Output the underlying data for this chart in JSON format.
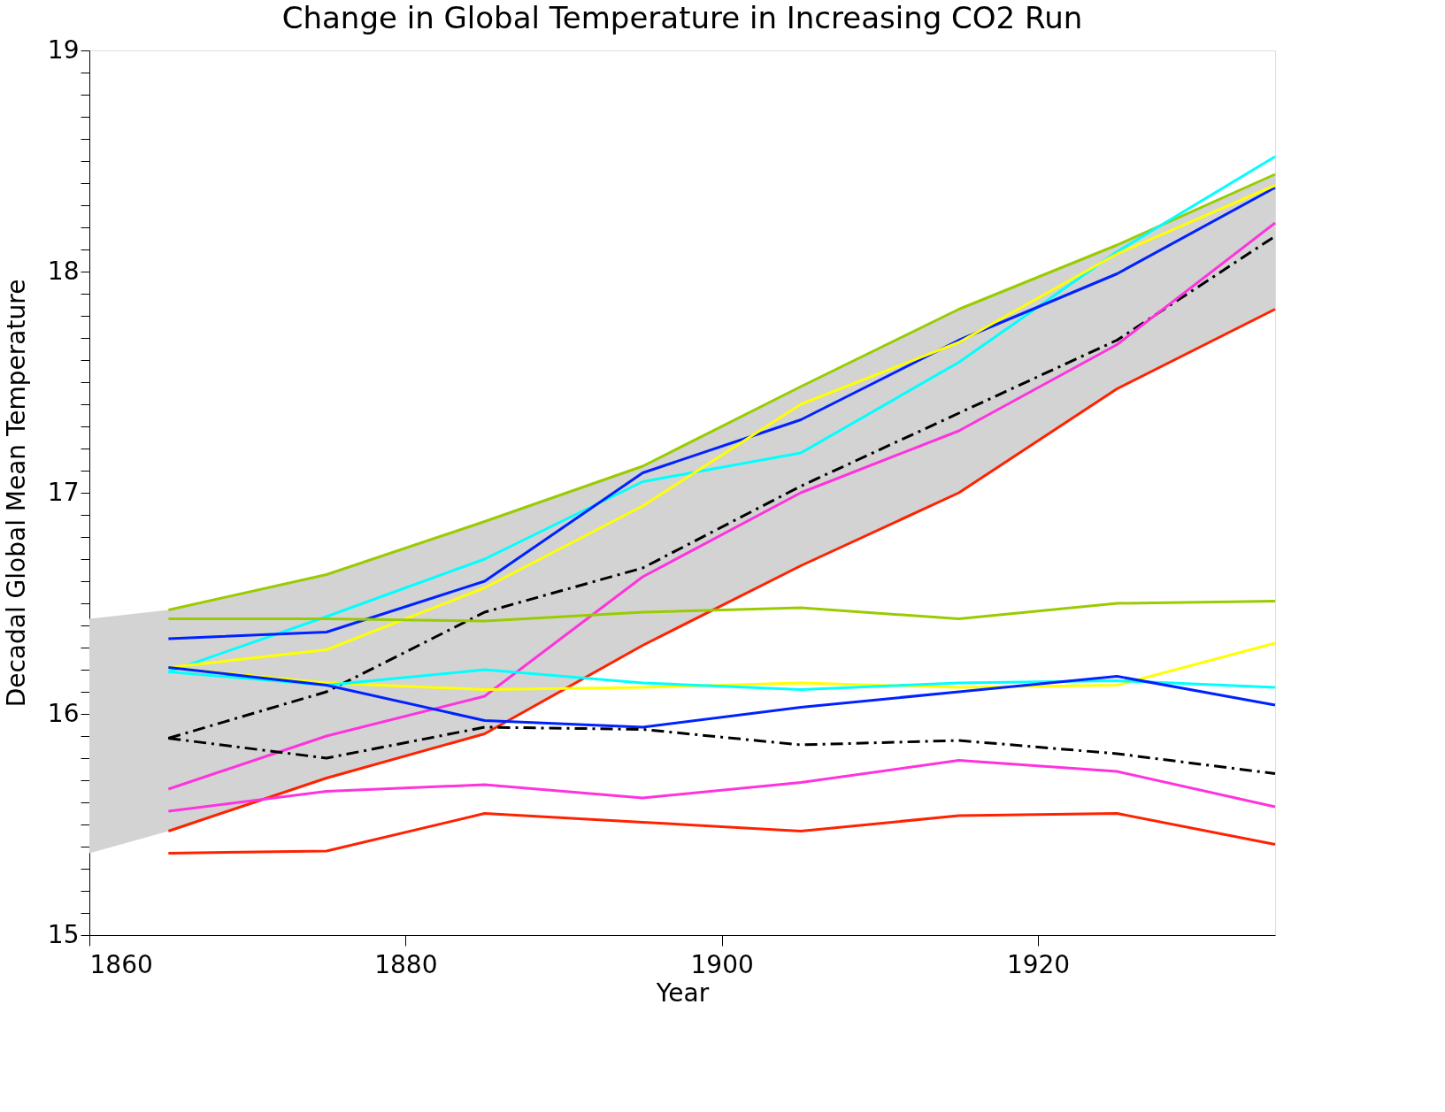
{
  "chart_data": {
    "type": "line",
    "title": "Change in Global Temperature in Increasing CO2 Run",
    "xlabel": "Year",
    "ylabel": "Decadal Global Mean Temperature",
    "x": [
      1865,
      1875,
      1885,
      1895,
      1905,
      1915,
      1925,
      1935
    ],
    "xlim": [
      1860,
      1935
    ],
    "xticks": [
      1860,
      1880,
      1900,
      1920
    ],
    "ylim": [
      15,
      19
    ],
    "yticks": [
      15,
      {
        "value": 15.1,
        "label": null
      },
      {
        "value": 15.2,
        "label": null
      },
      {
        "value": 15.3,
        "label": null
      },
      {
        "value": 15.4,
        "label": null
      },
      {
        "value": 15.5,
        "label": null
      },
      {
        "value": 15.6,
        "label": null
      },
      {
        "value": 15.7,
        "label": null
      },
      {
        "value": 15.8,
        "label": null
      },
      {
        "value": 15.9,
        "label": null
      },
      16,
      {
        "value": 16.1,
        "label": null
      },
      {
        "value": 16.2,
        "label": null
      },
      {
        "value": 16.3,
        "label": null
      },
      {
        "value": 16.4,
        "label": null
      },
      {
        "value": 16.5,
        "label": null
      },
      {
        "value": 16.6,
        "label": null
      },
      {
        "value": 16.7,
        "label": null
      },
      {
        "value": 16.8,
        "label": null
      },
      {
        "value": 16.9,
        "label": null
      },
      17,
      {
        "value": 17.1,
        "label": null
      },
      {
        "value": 17.2,
        "label": null
      },
      {
        "value": 17.3,
        "label": null
      },
      {
        "value": 17.4,
        "label": null
      },
      {
        "value": 17.5,
        "label": null
      },
      {
        "value": 17.6,
        "label": null
      },
      {
        "value": 17.7,
        "label": null
      },
      {
        "value": 17.8,
        "label": null
      },
      {
        "value": 17.9,
        "label": null
      },
      18,
      {
        "value": 18.1,
        "label": null
      },
      {
        "value": 18.2,
        "label": null
      },
      {
        "value": 18.3,
        "label": null
      },
      {
        "value": 18.4,
        "label": null
      },
      {
        "value": 18.5,
        "label": null
      },
      {
        "value": 18.6,
        "label": null
      },
      {
        "value": 18.7,
        "label": null
      },
      {
        "value": 18.8,
        "label": null
      },
      {
        "value": 18.9,
        "label": null
      },
      19
    ],
    "grid": false,
    "marker": "none",
    "series": [
      {
        "color": "#000000",
        "line_style": "dashed",
        "x": [
          1860,
          1865,
          1875,
          1885,
          1895,
          1905,
          1915,
          1925,
          1935
        ],
        "lower": [
          15.37,
          15.47,
          15.71,
          15.91,
          16.31,
          16.67,
          17.0,
          17.47,
          17.83
        ],
        "upper": [
          16.43,
          16.47,
          16.63,
          16.87,
          17.12,
          17.48,
          17.83,
          18.12,
          18.44
        ],
        "values": [
          null,
          15.89,
          16.1,
          16.46,
          16.66,
          17.03,
          17.36,
          17.69,
          18.16
        ]
      },
      {
        "color": "#99cc00",
        "values": [
          16.47,
          16.63,
          16.87,
          17.12,
          17.48,
          17.83,
          18.12,
          18.44
        ]
      },
      {
        "color": "#00ffff",
        "values": [
          16.19,
          16.44,
          16.7,
          17.05,
          17.18,
          17.59,
          18.09,
          18.52
        ]
      },
      {
        "color": "#0022ff",
        "values": [
          16.34,
          16.37,
          16.6,
          17.09,
          17.33,
          17.69,
          17.99,
          18.38
        ]
      },
      {
        "color": "#ffff00",
        "values": [
          16.21,
          16.29,
          16.57,
          16.94,
          17.4,
          17.68,
          18.08,
          18.39
        ]
      },
      {
        "color": "#ff33dd",
        "values": [
          15.66,
          15.9,
          16.08,
          16.62,
          17.0,
          17.28,
          17.67,
          18.22
        ]
      },
      {
        "color": "#ff2200",
        "values": [
          15.47,
          15.71,
          15.91,
          16.31,
          16.67,
          17.0,
          17.47,
          17.83
        ]
      },
      {
        "color": "#99cc00",
        "values": [
          16.43,
          16.43,
          16.42,
          16.46,
          16.48,
          16.43,
          16.5,
          16.51
        ]
      },
      {
        "color": "#ffff00",
        "values": [
          16.21,
          16.14,
          16.11,
          16.12,
          16.14,
          16.12,
          16.13,
          16.32
        ]
      },
      {
        "color": "#00ffff",
        "values": [
          16.19,
          16.13,
          16.2,
          16.14,
          16.11,
          16.14,
          16.15,
          16.12
        ]
      },
      {
        "color": "#0022ff",
        "values": [
          16.21,
          16.13,
          15.97,
          15.94,
          16.03,
          16.1,
          16.17,
          16.04
        ]
      },
      {
        "color": "#000000",
        "line_style": "dashed",
        "values": [
          15.89,
          15.8,
          15.94,
          15.93,
          15.86,
          15.88,
          15.82,
          15.73
        ]
      },
      {
        "color": "#ff33dd",
        "values": [
          15.56,
          15.65,
          15.68,
          15.62,
          15.69,
          15.79,
          15.74,
          15.58
        ]
      },
      {
        "color": "#ff2200",
        "values": [
          15.37,
          15.38,
          15.55,
          15.51,
          15.47,
          15.54,
          15.55,
          15.41
        ]
      }
    ]
  }
}
